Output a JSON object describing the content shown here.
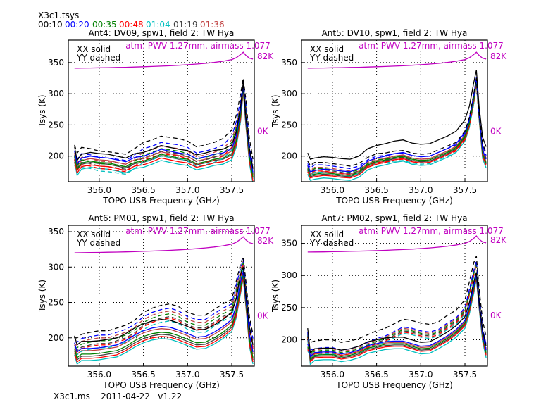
{
  "header": {
    "title": "X3c1.tsys",
    "times": [
      {
        "label": "00:10",
        "color": "#000000"
      },
      {
        "label": "00:20",
        "color": "#0000ff"
      },
      {
        "label": "00:35",
        "color": "#008000"
      },
      {
        "label": "00:48",
        "color": "#ff0000"
      },
      {
        "label": "01:04",
        "color": "#00bfbf"
      },
      {
        "label": "01:19",
        "color": "#404040"
      },
      {
        "label": "01:36",
        "color": "#c04040"
      }
    ]
  },
  "footer": "X3c1.ms    2011-04-22   v1.22",
  "chart_data": [
    {
      "type": "line",
      "title": "Ant4: DV09,  spw1,  field 2: TW Hya",
      "xlabel": "TOPO USB Frequency (GHz)",
      "ylabel": "Tsys (K)",
      "xlim": [
        355.65,
        357.755
      ],
      "ylim": [
        159,
        386
      ],
      "xticks": [
        "356.0",
        "356.5",
        "357.0",
        "357.5"
      ],
      "yticks": [
        "200",
        "250",
        "300",
        "350"
      ],
      "grid": true,
      "legend": [
        "XX solid",
        "YY dashed"
      ],
      "atm_label": "atm: PWV 1.27mm, airmass 1.077",
      "atm_axis": {
        "labels": [
          "82K",
          "0K"
        ],
        "tsys_at_0K": 240,
        "tsys_at_82K": 360
      },
      "xx_base": [
        215,
        193,
        203,
        206,
        204,
        203,
        200,
        197,
        204,
        206,
        211,
        217,
        214,
        211,
        209,
        202,
        205,
        209,
        211,
        218,
        238,
        280,
        318,
        262,
        212,
        180
      ],
      "yy_base": [
        218,
        205,
        214,
        212,
        208,
        207,
        205,
        203,
        212,
        222,
        226,
        232,
        230,
        228,
        224,
        215,
        218,
        222,
        228,
        242,
        265,
        300,
        325,
        290,
        228,
        195
      ],
      "xx_offsets": [
        0,
        -6,
        -14,
        -20,
        -24,
        -16,
        -10
      ],
      "yy_offsets": [
        0,
        -10,
        -20,
        -28,
        -32,
        -24,
        -16
      ]
    },
    {
      "type": "line",
      "title": "Ant5: DV10,  spw1,  field 2: TW Hya",
      "xlabel": "TOPO USB Frequency (GHz)",
      "ylabel": "Tsys (K)",
      "xlim": [
        355.65,
        357.755
      ],
      "ylim": [
        159,
        386
      ],
      "xticks": [
        "356.0",
        "356.5",
        "357.0",
        "357.5"
      ],
      "yticks": [
        "200",
        "250",
        "300",
        "350"
      ],
      "grid": true,
      "legend": [
        "XX solid",
        "YY dashed"
      ],
      "atm_label": "atm: PWV 1.27mm, airmass 1.077",
      "atm_axis": {
        "labels": [
          "82K",
          "0K"
        ],
        "tsys_at_0K": 240,
        "tsys_at_82K": 360
      },
      "xx_base": [
        205,
        195,
        197,
        199,
        198,
        196,
        195,
        200,
        212,
        217,
        220,
        224,
        226,
        221,
        219,
        220,
        226,
        232,
        240,
        258,
        280,
        318,
        338,
        280,
        230,
        215
      ],
      "yy_base": [
        192,
        185,
        190,
        190,
        188,
        186,
        184,
        188,
        198,
        204,
        205,
        208,
        209,
        205,
        203,
        204,
        210,
        216,
        222,
        240,
        262,
        300,
        325,
        270,
        220,
        205
      ],
      "xx_offsets": [
        0,
        -20,
        -26,
        -30,
        -34,
        -28,
        -24
      ],
      "yy_offsets": [
        0,
        -4,
        -10,
        -14,
        -16,
        -12,
        -8
      ]
    },
    {
      "type": "line",
      "title": "Ant6: PM01,  spw1,  field 2: TW Hya",
      "xlabel": "TOPO USB Frequency (GHz)",
      "ylabel": "Tsys (K)",
      "xlim": [
        355.65,
        357.755
      ],
      "ylim": [
        160,
        359
      ],
      "xticks": [
        "356.0",
        "356.5",
        "357.0",
        "357.5"
      ],
      "yticks": [
        "200",
        "250",
        "300",
        "350"
      ],
      "grid": true,
      "legend": [
        "XX solid",
        "YY dashed"
      ],
      "atm_label": "atm: PWV 1.27mm, airmass 1.077",
      "atm_axis": {
        "labels": [
          "82K",
          "0K"
        ],
        "tsys_at_0K": 231,
        "tsys_at_82K": 337
      },
      "xx_base": [
        203,
        190,
        195,
        195,
        196,
        198,
        200,
        206,
        214,
        220,
        224,
        226,
        225,
        221,
        216,
        211,
        212,
        218,
        226,
        236,
        255,
        290,
        300,
        260,
        215,
        190
      ],
      "yy_base": [
        200,
        200,
        205,
        208,
        210,
        210,
        214,
        218,
        225,
        236,
        242,
        246,
        248,
        244,
        236,
        232,
        232,
        240,
        248,
        254,
        280,
        305,
        315,
        280,
        230,
        205
      ],
      "xx_offsets": [
        0,
        -10,
        -18,
        -24,
        -27,
        -21,
        -13
      ],
      "yy_offsets": [
        0,
        -6,
        -14,
        -20,
        -24,
        -18,
        -10
      ]
    },
    {
      "type": "line",
      "title": "Ant7: PM02,  spw1,  field 2: TW Hya",
      "xlabel": "TOPO USB Frequency (GHz)",
      "ylabel": "Tsys (K)",
      "xlim": [
        355.65,
        357.755
      ],
      "ylim": [
        159,
        378
      ],
      "xticks": [
        "356.0",
        "356.5",
        "357.0",
        "357.5"
      ],
      "yticks": [
        "200",
        "250",
        "300",
        "350"
      ],
      "grid": true,
      "legend": [
        "XX solid",
        "YY dashed"
      ],
      "atm_label": "atm: PWV 1.27mm, airmass 1.077",
      "atm_axis": {
        "labels": [
          "82K",
          "0K"
        ],
        "tsys_at_0K": 238,
        "tsys_at_82K": 355
      },
      "xx_base": [
        218,
        180,
        186,
        187,
        187,
        184,
        186,
        190,
        197,
        200,
        203,
        204,
        204,
        200,
        196,
        197,
        204,
        212,
        222,
        236,
        258,
        290,
        305,
        260,
        215,
        190
      ],
      "yy_base": [
        205,
        196,
        198,
        200,
        200,
        196,
        198,
        202,
        208,
        214,
        218,
        225,
        232,
        230,
        226,
        224,
        228,
        238,
        246,
        262,
        290,
        320,
        330,
        280,
        230,
        205
      ],
      "xx_offsets": [
        0,
        -6,
        -10,
        -14,
        -18,
        -12,
        -8
      ],
      "yy_offsets": [
        0,
        -12,
        -16,
        -20,
        -22,
        -18,
        -14
      ]
    }
  ],
  "freq_samples": [
    355.72,
    355.75,
    355.8,
    355.9,
    356.0,
    356.1,
    356.2,
    356.3,
    356.4,
    356.5,
    356.6,
    356.7,
    356.8,
    356.9,
    357.0,
    357.1,
    357.2,
    357.3,
    357.4,
    357.5,
    357.55,
    357.6,
    357.63,
    357.66,
    357.7,
    357.74
  ],
  "atm_curve_K": [
    69,
    69,
    69.1,
    69.2,
    69.4,
    69.6,
    69.8,
    70,
    70.3,
    70.6,
    70.9,
    71.3,
    71.7,
    72.2,
    72.8,
    73.5,
    74.3,
    75.3,
    76.6,
    78.5,
    80.5,
    84,
    86.5,
    83,
    80,
    79
  ]
}
